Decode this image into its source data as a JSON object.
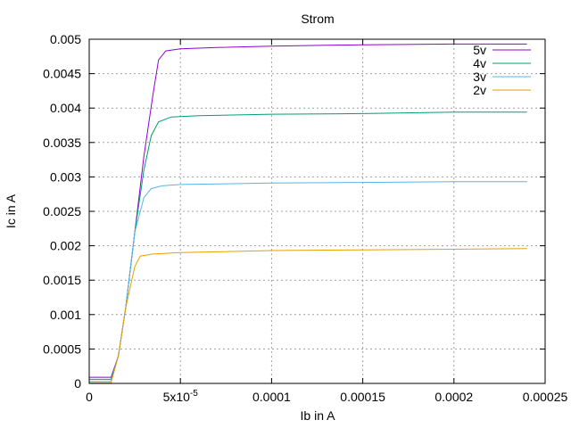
{
  "chart_data": {
    "type": "line",
    "title": "Strom",
    "xlabel": "Ib in A",
    "ylabel": "Ic in A",
    "xlim": [
      0,
      0.00025
    ],
    "ylim": [
      0,
      0.005
    ],
    "grid": true,
    "legend_position": "top-right",
    "x_ticks": [
      {
        "value": 0,
        "label": "0"
      },
      {
        "value": 5e-05,
        "label": "5x10",
        "exp": "-5"
      },
      {
        "value": 0.0001,
        "label": "0.0001"
      },
      {
        "value": 0.00015,
        "label": "0.00015"
      },
      {
        "value": 0.0002,
        "label": "0.0002"
      },
      {
        "value": 0.00025,
        "label": "0.00025"
      }
    ],
    "y_ticks": [
      {
        "value": 0,
        "label": "0"
      },
      {
        "value": 0.0005,
        "label": "0.0005"
      },
      {
        "value": 0.001,
        "label": "0.001"
      },
      {
        "value": 0.0015,
        "label": "0.0015"
      },
      {
        "value": 0.002,
        "label": "0.002"
      },
      {
        "value": 0.0025,
        "label": "0.0025"
      },
      {
        "value": 0.003,
        "label": "0.003"
      },
      {
        "value": 0.0035,
        "label": "0.0035"
      },
      {
        "value": 0.004,
        "label": "0.004"
      },
      {
        "value": 0.0045,
        "label": "0.0045"
      },
      {
        "value": 0.005,
        "label": "0.005"
      }
    ],
    "series": [
      {
        "name": "5v",
        "color": "#9400d3",
        "points": [
          [
            0,
            9e-05
          ],
          [
            1.2e-05,
            9e-05
          ],
          [
            1.6e-05,
            0.0004
          ],
          [
            2e-05,
            0.0011
          ],
          [
            2.5e-05,
            0.0022
          ],
          [
            3e-05,
            0.0033
          ],
          [
            3.5e-05,
            0.0042
          ],
          [
            3.8e-05,
            0.0047
          ],
          [
            4.2e-05,
            0.00483
          ],
          [
            5e-05,
            0.00486
          ],
          [
            7e-05,
            0.00488
          ],
          [
            0.0001,
            0.0049
          ],
          [
            0.00015,
            0.00492
          ],
          [
            0.0002,
            0.00493
          ],
          [
            0.00024,
            0.00493
          ]
        ]
      },
      {
        "name": "4v",
        "color": "#009e73",
        "points": [
          [
            0,
            6e-05
          ],
          [
            1.2e-05,
            6e-05
          ],
          [
            1.6e-05,
            0.0004
          ],
          [
            2e-05,
            0.0011
          ],
          [
            2.5e-05,
            0.0022
          ],
          [
            3e-05,
            0.0031
          ],
          [
            3.4e-05,
            0.0036
          ],
          [
            3.8e-05,
            0.0038
          ],
          [
            4.5e-05,
            0.00387
          ],
          [
            6e-05,
            0.00389
          ],
          [
            0.0001,
            0.00391
          ],
          [
            0.00015,
            0.00392
          ],
          [
            0.0002,
            0.00394
          ],
          [
            0.00024,
            0.00394
          ]
        ]
      },
      {
        "name": "3v",
        "color": "#56b4e9",
        "points": [
          [
            0,
            3e-05
          ],
          [
            1.2e-05,
            3e-05
          ],
          [
            1.6e-05,
            0.0004
          ],
          [
            2e-05,
            0.0011
          ],
          [
            2.5e-05,
            0.0022
          ],
          [
            3e-05,
            0.0027
          ],
          [
            3.4e-05,
            0.00283
          ],
          [
            4e-05,
            0.00287
          ],
          [
            5e-05,
            0.00289
          ],
          [
            0.0001,
            0.00291
          ],
          [
            0.00015,
            0.00292
          ],
          [
            0.0002,
            0.00293
          ],
          [
            0.00024,
            0.00293
          ]
        ]
      },
      {
        "name": "2v",
        "color": "#e69f00",
        "points": [
          [
            0,
            1e-05
          ],
          [
            1.2e-05,
            1e-05
          ],
          [
            1.6e-05,
            0.0004
          ],
          [
            2e-05,
            0.0011
          ],
          [
            2.5e-05,
            0.0017
          ],
          [
            2.8e-05,
            0.00185
          ],
          [
            3.5e-05,
            0.00188
          ],
          [
            5e-05,
            0.0019
          ],
          [
            0.0001,
            0.00193
          ],
          [
            0.00015,
            0.00194
          ],
          [
            0.0002,
            0.00195
          ],
          [
            0.00024,
            0.00196
          ]
        ]
      }
    ]
  }
}
